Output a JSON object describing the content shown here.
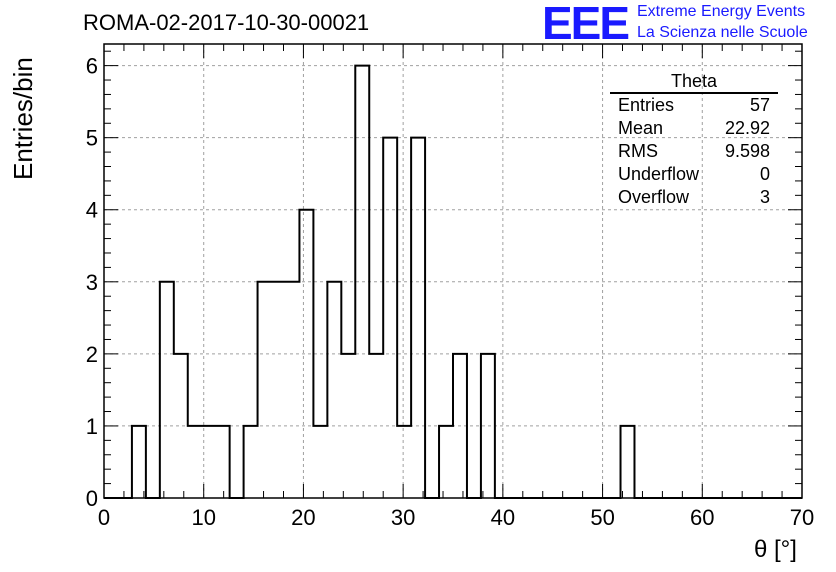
{
  "header": {
    "title": "ROMA-02-2017-10-30-00021",
    "logo_text": "EEE",
    "logo_line1": "Extreme Energy Events",
    "logo_line2": "La Scienza nelle Scuole",
    "logo_color": "#1a1aff"
  },
  "stats_box": {
    "title": "Theta",
    "rows": [
      {
        "label": "Entries",
        "value": "57"
      },
      {
        "label": "Mean",
        "value": "22.92"
      },
      {
        "label": "RMS",
        "value": "9.598"
      },
      {
        "label": "Underflow",
        "value": "0"
      },
      {
        "label": "Overflow",
        "value": "3"
      }
    ]
  },
  "chart_data": {
    "type": "bar",
    "style": "step-histogram",
    "xlabel": "θ [°]",
    "ylabel": "Entries/bin",
    "xlim": [
      0,
      70
    ],
    "ylim": [
      0,
      6.3
    ],
    "bin_width": 1.4,
    "x_ticks": [
      "0",
      "10",
      "20",
      "30",
      "40",
      "50",
      "60",
      "70"
    ],
    "y_ticks": [
      "0",
      "1",
      "2",
      "3",
      "4",
      "5",
      "6"
    ],
    "grid": true,
    "bin_edges_start": 0,
    "values": [
      0,
      0,
      1,
      0,
      3,
      2,
      1,
      1,
      1,
      0,
      1,
      3,
      3,
      3,
      4,
      1,
      3,
      2,
      6,
      2,
      5,
      1,
      5,
      0,
      1,
      2,
      0,
      2,
      0,
      0,
      0,
      0,
      0,
      0,
      0,
      0,
      0,
      1,
      0,
      0,
      0,
      0,
      0,
      0,
      0,
      0,
      0,
      0,
      0,
      0
    ]
  }
}
